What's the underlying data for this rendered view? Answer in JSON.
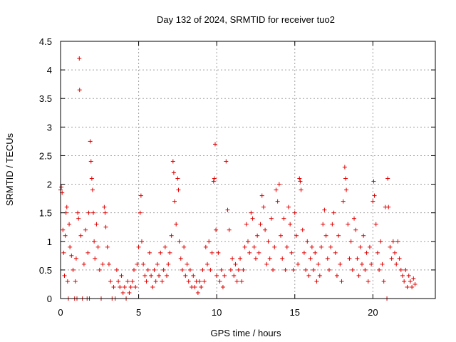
{
  "chart_data": {
    "type": "scatter",
    "title": "Day 132 of 2024, SRMTID for receiver tuo2",
    "xlabel": "GPS time / hours",
    "ylabel": "SRMTID / TECUs",
    "xlim": [
      0,
      24
    ],
    "ylim": [
      0,
      4.5
    ],
    "x_ticks": [
      0,
      5,
      10,
      15,
      20
    ],
    "x_tick_labels": [
      "0",
      "5",
      "10",
      "15",
      "20"
    ],
    "y_ticks": [
      0,
      0.5,
      1,
      1.5,
      2,
      2.5,
      3,
      3.5,
      4,
      4.5
    ],
    "y_tick_labels": [
      "0",
      "0.5",
      "1",
      "1.5",
      "2",
      "2.5",
      "3",
      "3.5",
      "4",
      "4.5"
    ],
    "grid": true,
    "marker": "plus",
    "series": [
      {
        "name": "SRMTID",
        "color": "#e00000",
        "points": [
          [
            0.0,
            1.9
          ],
          [
            0.05,
            1.95
          ],
          [
            0.1,
            1.85
          ],
          [
            0.15,
            1.2
          ],
          [
            0.2,
            0.8
          ],
          [
            0.25,
            0.4
          ],
          [
            0.3,
            1.1
          ],
          [
            0.35,
            1.5
          ],
          [
            0.4,
            1.6
          ],
          [
            0.45,
            0.3
          ],
          [
            0.5,
            0.0
          ],
          [
            0.55,
            1.3
          ],
          [
            0.6,
            0.9
          ],
          [
            0.7,
            0.75
          ],
          [
            0.8,
            0.5
          ],
          [
            0.9,
            0.0
          ],
          [
            0.95,
            0.3
          ],
          [
            1.0,
            0.7
          ],
          [
            1.05,
            0.0
          ],
          [
            1.1,
            1.5
          ],
          [
            1.15,
            1.4
          ],
          [
            1.2,
            4.2
          ],
          [
            1.22,
            3.65
          ],
          [
            1.3,
            1.1
          ],
          [
            1.4,
            0.0
          ],
          [
            1.5,
            0.6
          ],
          [
            1.6,
            1.2
          ],
          [
            1.7,
            0.0
          ],
          [
            1.75,
            0.8
          ],
          [
            1.8,
            1.5
          ],
          [
            1.85,
            0.0
          ],
          [
            1.9,
            2.75
          ],
          [
            1.95,
            2.4
          ],
          [
            2.0,
            2.1
          ],
          [
            2.05,
            1.9
          ],
          [
            2.1,
            1.5
          ],
          [
            2.15,
            1.0
          ],
          [
            2.2,
            0.7
          ],
          [
            2.3,
            1.3
          ],
          [
            2.4,
            0.9
          ],
          [
            2.5,
            0.5
          ],
          [
            2.6,
            0.0
          ],
          [
            2.7,
            0.6
          ],
          [
            2.8,
            1.6
          ],
          [
            2.85,
            1.5
          ],
          [
            2.9,
            1.25
          ],
          [
            3.0,
            0.9
          ],
          [
            3.1,
            0.6
          ],
          [
            3.2,
            0.3
          ],
          [
            3.3,
            0.0
          ],
          [
            3.4,
            0.2
          ],
          [
            3.5,
            0.0
          ],
          [
            3.6,
            0.5
          ],
          [
            3.7,
            0.3
          ],
          [
            3.8,
            0.2
          ],
          [
            3.9,
            0.4
          ],
          [
            4.0,
            0.1
          ],
          [
            4.1,
            0.2
          ],
          [
            4.2,
            0.0
          ],
          [
            4.3,
            0.3
          ],
          [
            4.4,
            0.1
          ],
          [
            4.5,
            0.2
          ],
          [
            4.6,
            0.3
          ],
          [
            4.7,
            0.5
          ],
          [
            4.8,
            0.2
          ],
          [
            4.9,
            0.6
          ],
          [
            5.0,
            0.9
          ],
          [
            5.1,
            1.5
          ],
          [
            5.15,
            1.8
          ],
          [
            5.2,
            1.0
          ],
          [
            5.3,
            0.6
          ],
          [
            5.4,
            0.4
          ],
          [
            5.5,
            0.3
          ],
          [
            5.6,
            0.5
          ],
          [
            5.7,
            0.8
          ],
          [
            5.8,
            0.4
          ],
          [
            5.9,
            0.2
          ],
          [
            6.0,
            0.5
          ],
          [
            6.1,
            0.3
          ],
          [
            6.2,
            0.6
          ],
          [
            6.3,
            0.4
          ],
          [
            6.4,
            0.8
          ],
          [
            6.5,
            0.3
          ],
          [
            6.6,
            0.5
          ],
          [
            6.7,
            0.9
          ],
          [
            6.8,
            0.4
          ],
          [
            6.9,
            0.6
          ],
          [
            7.0,
            0.8
          ],
          [
            7.1,
            1.1
          ],
          [
            7.2,
            2.4
          ],
          [
            7.25,
            2.2
          ],
          [
            7.3,
            1.7
          ],
          [
            7.4,
            1.3
          ],
          [
            7.5,
            2.1
          ],
          [
            7.55,
            1.9
          ],
          [
            7.6,
            1.0
          ],
          [
            7.7,
            0.7
          ],
          [
            7.8,
            0.5
          ],
          [
            7.9,
            0.9
          ],
          [
            8.0,
            0.4
          ],
          [
            8.1,
            0.6
          ],
          [
            8.2,
            0.3
          ],
          [
            8.3,
            0.5
          ],
          [
            8.4,
            0.2
          ],
          [
            8.5,
            0.4
          ],
          [
            8.6,
            0.2
          ],
          [
            8.7,
            0.3
          ],
          [
            8.8,
            0.1
          ],
          [
            8.9,
            0.3
          ],
          [
            9.0,
            0.2
          ],
          [
            9.1,
            0.5
          ],
          [
            9.2,
            0.3
          ],
          [
            9.3,
            0.9
          ],
          [
            9.4,
            0.6
          ],
          [
            9.5,
            1.0
          ],
          [
            9.6,
            0.5
          ],
          [
            9.7,
            0.8
          ],
          [
            9.8,
            2.05
          ],
          [
            9.85,
            2.1
          ],
          [
            9.9,
            2.7
          ],
          [
            9.95,
            1.2
          ],
          [
            10.0,
            0.4
          ],
          [
            10.1,
            0.8
          ],
          [
            10.2,
            0.3
          ],
          [
            10.3,
            0.5
          ],
          [
            10.4,
            0.2
          ],
          [
            10.5,
            0.4
          ],
          [
            10.6,
            2.4
          ],
          [
            10.7,
            1.55
          ],
          [
            10.8,
            1.2
          ],
          [
            10.9,
            0.5
          ],
          [
            11.0,
            0.7
          ],
          [
            11.1,
            0.4
          ],
          [
            11.2,
            0.6
          ],
          [
            11.3,
            0.3
          ],
          [
            11.4,
            0.5
          ],
          [
            11.5,
            0.7
          ],
          [
            11.6,
            0.3
          ],
          [
            11.7,
            0.5
          ],
          [
            11.8,
            0.9
          ],
          [
            11.9,
            1.3
          ],
          [
            12.0,
            1.0
          ],
          [
            12.1,
            0.8
          ],
          [
            12.2,
            1.5
          ],
          [
            12.3,
            1.4
          ],
          [
            12.4,
            0.9
          ],
          [
            12.5,
            0.7
          ],
          [
            12.6,
            1.1
          ],
          [
            12.7,
            0.8
          ],
          [
            12.8,
            1.3
          ],
          [
            12.9,
            1.8
          ],
          [
            13.0,
            1.6
          ],
          [
            13.1,
            1.2
          ],
          [
            13.2,
            0.6
          ],
          [
            13.3,
            1.0
          ],
          [
            13.4,
            0.7
          ],
          [
            13.5,
            1.4
          ],
          [
            13.6,
            0.5
          ],
          [
            13.7,
            0.9
          ],
          [
            13.8,
            1.9
          ],
          [
            13.9,
            1.7
          ],
          [
            14.0,
            2.0
          ],
          [
            14.1,
            1.1
          ],
          [
            14.2,
            0.7
          ],
          [
            14.3,
            1.4
          ],
          [
            14.4,
            0.5
          ],
          [
            14.5,
            0.9
          ],
          [
            14.6,
            1.6
          ],
          [
            14.7,
            1.3
          ],
          [
            14.8,
            0.8
          ],
          [
            14.9,
            0.5
          ],
          [
            15.0,
            1.5
          ],
          [
            15.1,
            1.1
          ],
          [
            15.2,
            0.6
          ],
          [
            15.3,
            2.1
          ],
          [
            15.35,
            2.05
          ],
          [
            15.4,
            1.9
          ],
          [
            15.5,
            1.2
          ],
          [
            15.6,
            0.8
          ],
          [
            15.7,
            0.5
          ],
          [
            15.8,
            1.0
          ],
          [
            15.9,
            0.4
          ],
          [
            16.0,
            0.7
          ],
          [
            16.1,
            0.9
          ],
          [
            16.2,
            0.5
          ],
          [
            16.3,
            0.8
          ],
          [
            16.4,
            0.3
          ],
          [
            16.5,
            0.6
          ],
          [
            16.6,
            0.4
          ],
          [
            16.7,
            0.9
          ],
          [
            16.8,
            1.3
          ],
          [
            16.9,
            1.55
          ],
          [
            17.0,
            1.1
          ],
          [
            17.1,
            0.7
          ],
          [
            17.2,
            0.5
          ],
          [
            17.3,
            0.9
          ],
          [
            17.4,
            1.3
          ],
          [
            17.5,
            1.5
          ],
          [
            17.6,
            0.8
          ],
          [
            17.7,
            0.4
          ],
          [
            17.8,
            1.1
          ],
          [
            17.9,
            0.6
          ],
          [
            18.0,
            0.3
          ],
          [
            18.1,
            1.7
          ],
          [
            18.2,
            2.3
          ],
          [
            18.25,
            2.1
          ],
          [
            18.3,
            1.9
          ],
          [
            18.4,
            1.3
          ],
          [
            18.5,
            0.7
          ],
          [
            18.6,
            1.0
          ],
          [
            18.7,
            0.5
          ],
          [
            18.8,
            1.4
          ],
          [
            18.9,
            1.2
          ],
          [
            19.0,
            0.7
          ],
          [
            19.1,
            0.4
          ],
          [
            19.2,
            0.9
          ],
          [
            19.3,
            0.6
          ],
          [
            19.4,
            1.1
          ],
          [
            19.5,
            0.5
          ],
          [
            19.6,
            0.8
          ],
          [
            19.7,
            0.3
          ],
          [
            19.8,
            0.9
          ],
          [
            19.9,
            0.6
          ],
          [
            20.0,
            1.7
          ],
          [
            20.05,
            2.05
          ],
          [
            20.1,
            1.8
          ],
          [
            20.2,
            1.3
          ],
          [
            20.3,
            0.8
          ],
          [
            20.4,
            0.5
          ],
          [
            20.5,
            1.0
          ],
          [
            20.6,
            0.6
          ],
          [
            20.7,
            0.3
          ],
          [
            20.8,
            1.6
          ],
          [
            20.9,
            0.0
          ],
          [
            20.95,
            2.1
          ],
          [
            21.0,
            1.6
          ],
          [
            21.1,
            0.9
          ],
          [
            21.2,
            0.7
          ],
          [
            21.3,
            1.0
          ],
          [
            21.4,
            0.8
          ],
          [
            21.5,
            0.6
          ],
          [
            21.6,
            1.0
          ],
          [
            21.7,
            0.7
          ],
          [
            21.8,
            0.5
          ],
          [
            21.9,
            0.4
          ],
          [
            22.0,
            0.3
          ],
          [
            22.1,
            0.5
          ],
          [
            22.2,
            0.2
          ],
          [
            22.3,
            0.4
          ],
          [
            22.4,
            0.3
          ],
          [
            22.5,
            0.2
          ],
          [
            22.6,
            0.35
          ],
          [
            22.7,
            0.25
          ]
        ]
      }
    ]
  }
}
